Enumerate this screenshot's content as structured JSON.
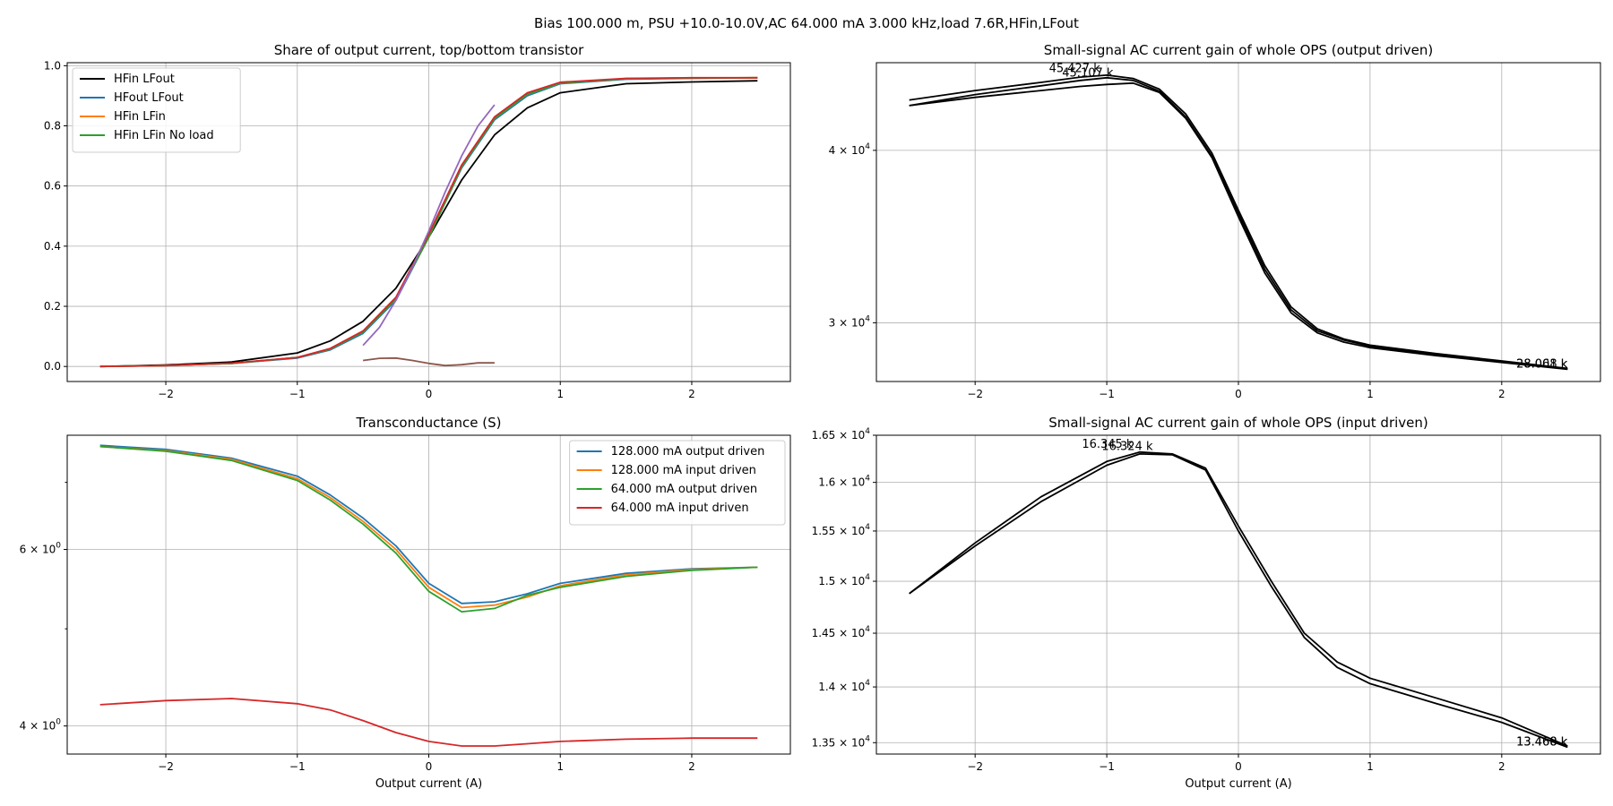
{
  "suptitle": "Bias 100.000 m, PSU +10.0-10.0V,AC 64.000 mA 3.000 kHz,load 7.6R,HFin,LFout",
  "colors": {
    "black": "#000000",
    "blue": "#1f77b4",
    "orange": "#ff7f0e",
    "green": "#2ca02c",
    "red": "#d62728",
    "purple": "#9467bd",
    "brown": "#8c564b"
  },
  "chart_data": [
    {
      "id": "share",
      "type": "line",
      "title": "Share of output current, top/bottom transistor",
      "xlabel": "",
      "ylabel": "",
      "xlim": [
        -2.75,
        2.75
      ],
      "ylim": [
        -0.05,
        1.01
      ],
      "xticks": [
        -2,
        -1,
        0,
        1,
        2
      ],
      "xtick_labels": [
        "−2",
        "−1",
        "0",
        "1",
        "2"
      ],
      "yticks": [
        0.0,
        0.2,
        0.4,
        0.6,
        0.8,
        1.0
      ],
      "ytick_labels": [
        "0.0",
        "0.2",
        "0.4",
        "0.6",
        "0.8",
        "1.0"
      ],
      "grid": true,
      "legend": "top-left",
      "legend_entries": [
        "HFin LFout",
        "HFout LFout",
        "HFin LFin",
        "HFin LFin No load"
      ],
      "series": [
        {
          "name": "HFin LFout",
          "color": "#000000",
          "x": [
            -2.5,
            -2.0,
            -1.5,
            -1.0,
            -0.75,
            -0.5,
            -0.25,
            0.0,
            0.25,
            0.5,
            0.75,
            1.0,
            1.5,
            2.0,
            2.5
          ],
          "y": [
            0.0,
            0.005,
            0.015,
            0.045,
            0.085,
            0.15,
            0.26,
            0.43,
            0.62,
            0.77,
            0.86,
            0.91,
            0.94,
            0.946,
            0.95
          ]
        },
        {
          "name": "HFout LFout",
          "color": "#1f77b4",
          "x": [
            -2.5,
            -2.0,
            -1.5,
            -1.0,
            -0.75,
            -0.5,
            -0.25,
            0.0,
            0.25,
            0.5,
            0.75,
            1.0,
            1.5,
            2.0,
            2.5
          ],
          "y": [
            0.0,
            0.003,
            0.01,
            0.028,
            0.055,
            0.11,
            0.22,
            0.43,
            0.66,
            0.82,
            0.9,
            0.94,
            0.955,
            0.958,
            0.96
          ]
        },
        {
          "name": "HFin LFin",
          "color": "#ff7f0e",
          "x": [
            -2.5,
            -2.0,
            -1.5,
            -1.0,
            -0.75,
            -0.5,
            -0.25,
            0.0,
            0.25,
            0.5,
            0.75,
            1.0,
            1.5,
            2.0,
            2.5
          ],
          "y": [
            0.0,
            0.003,
            0.01,
            0.03,
            0.058,
            0.115,
            0.225,
            0.43,
            0.665,
            0.825,
            0.905,
            0.942,
            0.957,
            0.959,
            0.96
          ]
        },
        {
          "name": "HFin LFin No load",
          "color": "#2ca02c",
          "x": [
            -2.5,
            -2.0,
            -1.5,
            -1.0,
            -0.75,
            -0.5,
            -0.25,
            0.0,
            0.25,
            0.5,
            0.75,
            1.0,
            1.5,
            2.0,
            2.5
          ],
          "y": [
            0.0,
            0.003,
            0.01,
            0.03,
            0.058,
            0.115,
            0.225,
            0.43,
            0.665,
            0.825,
            0.905,
            0.942,
            0.957,
            0.959,
            0.96
          ]
        },
        {
          "color": "#d62728",
          "x": [
            -2.5,
            -2.0,
            -1.5,
            -1.0,
            -0.75,
            -0.5,
            -0.25,
            0.0,
            0.25,
            0.5,
            0.75,
            1.0,
            1.5,
            2.0,
            2.5
          ],
          "y": [
            0.0,
            0.003,
            0.011,
            0.03,
            0.06,
            0.118,
            0.23,
            0.44,
            0.67,
            0.83,
            0.91,
            0.945,
            0.958,
            0.96,
            0.96
          ]
        },
        {
          "color": "#9467bd",
          "x": [
            -0.5,
            -0.375,
            -0.25,
            -0.125,
            0.0,
            0.125,
            0.25,
            0.375,
            0.5
          ],
          "y": [
            0.07,
            0.13,
            0.22,
            0.33,
            0.45,
            0.58,
            0.7,
            0.8,
            0.87
          ]
        },
        {
          "color": "#8c564b",
          "x": [
            -0.5,
            -0.375,
            -0.25,
            -0.125,
            0.0,
            0.125,
            0.25,
            0.375,
            0.5
          ],
          "y": [
            0.02,
            0.027,
            0.028,
            0.02,
            0.01,
            0.003,
            0.006,
            0.012,
            0.012
          ]
        }
      ]
    },
    {
      "id": "gain_out",
      "type": "line",
      "title": "Small-signal AC current gain of whole OPS (output driven)",
      "xlabel": "",
      "log_y": true,
      "xlim": [
        -2.75,
        2.75
      ],
      "ylim": [
        27200,
        46300
      ],
      "xticks": [
        -2,
        -1,
        0,
        1,
        2
      ],
      "xtick_labels": [
        "−2",
        "−1",
        "0",
        "1",
        "2"
      ],
      "yticks": [
        30000,
        40000
      ],
      "ytick_labels": [
        {
          "base": "3 × 10",
          "exp": "4"
        },
        {
          "base": "4 × 10",
          "exp": "4"
        }
      ],
      "grid": true,
      "annotations": [
        {
          "text": "45.427 k",
          "x": -1.05,
          "y": 45427,
          "anchor": "end"
        },
        {
          "text": "45.107 k",
          "x": -0.95,
          "y": 45107,
          "anchor": "end"
        },
        {
          "text": "28.061 k",
          "x": 2.5,
          "y": 27750,
          "anchor": "end"
        },
        {
          "text": "28.008 k",
          "x": 2.5,
          "y": 27750,
          "anchor": "end"
        }
      ],
      "series": [
        {
          "color": "#000000",
          "x": [
            -2.5,
            -2.0,
            -1.5,
            -1.2,
            -1.0,
            -0.8,
            -0.6,
            -0.4,
            -0.2,
            0.0,
            0.2,
            0.4,
            0.6,
            0.8,
            1.0,
            1.5,
            2.0,
            2.5
          ],
          "y": [
            43500,
            44200,
            44800,
            45200,
            45350,
            45100,
            44300,
            42500,
            39800,
            36200,
            33000,
            30800,
            29700,
            29200,
            28900,
            28500,
            28150,
            27800
          ]
        },
        {
          "color": "#000000",
          "x": [
            -2.5,
            -2.0,
            -1.5,
            -1.2,
            -1.0,
            -0.8,
            -0.6,
            -0.4,
            -0.2,
            0.0,
            0.2,
            0.4,
            0.6,
            0.8,
            1.0,
            1.5,
            2.0,
            2.5
          ],
          "y": [
            43100,
            43900,
            44550,
            44950,
            45150,
            44950,
            44150,
            42300,
            39600,
            36000,
            32800,
            30650,
            29600,
            29150,
            28850,
            28450,
            28100,
            27780
          ]
        },
        {
          "color": "#000000",
          "x": [
            -2.5,
            -2.0,
            -1.5,
            -1.2,
            -1.0,
            -0.8,
            -0.6,
            -0.4,
            -0.2,
            0.0,
            0.2,
            0.4,
            0.6,
            0.8,
            1.0,
            1.5,
            2.0,
            2.5
          ],
          "y": [
            43100,
            43700,
            44200,
            44500,
            44650,
            44750,
            44050,
            42200,
            39500,
            35800,
            32600,
            30500,
            29500,
            29050,
            28780,
            28400,
            28080,
            27760
          ]
        }
      ]
    },
    {
      "id": "transconductance",
      "type": "line",
      "title": "Transconductance (S)",
      "xlabel": "Output current (A)",
      "log_y": true,
      "xlim": [
        -2.75,
        2.75
      ],
      "ylim": [
        3.75,
        7.8
      ],
      "xticks": [
        -2,
        -1,
        0,
        1,
        2
      ],
      "xtick_labels": [
        "−2",
        "−1",
        "0",
        "1",
        "2"
      ],
      "yticks": [
        4,
        6
      ],
      "ytick_labels": [
        {
          "base": "4 × 10",
          "exp": "0"
        },
        {
          "base": "6 × 10",
          "exp": "0"
        }
      ],
      "minor_yticks": [
        5,
        7
      ],
      "grid": true,
      "legend": "top-right",
      "legend_entries": [
        "128.000 mA output driven",
        "128.000 mA input driven",
        "64.000 mA output driven",
        "64.000 mA input driven"
      ],
      "series": [
        {
          "name": "128.000 mA output driven",
          "color": "#1f77b4",
          "x": [
            -2.5,
            -2.0,
            -1.5,
            -1.0,
            -0.75,
            -0.5,
            -0.25,
            0.0,
            0.25,
            0.5,
            0.75,
            1.0,
            1.5,
            2.0,
            2.5
          ],
          "y": [
            7.62,
            7.55,
            7.4,
            7.1,
            6.8,
            6.45,
            6.05,
            5.55,
            5.3,
            5.32,
            5.42,
            5.55,
            5.68,
            5.74,
            5.76
          ]
        },
        {
          "name": "128.000 mA input driven",
          "color": "#ff7f0e",
          "x": [
            -2.5,
            -2.0,
            -1.5,
            -1.0,
            -0.75,
            -0.5,
            -0.25,
            0.0,
            0.25,
            0.5,
            0.75,
            1.0,
            1.5,
            2.0,
            2.5
          ],
          "y": [
            7.6,
            7.53,
            7.38,
            7.06,
            6.76,
            6.4,
            6.0,
            5.5,
            5.25,
            5.28,
            5.38,
            5.52,
            5.66,
            5.73,
            5.76
          ]
        },
        {
          "name": "64.000 mA output driven",
          "color": "#2ca02c",
          "x": [
            -2.5,
            -2.0,
            -1.5,
            -1.0,
            -0.75,
            -0.5,
            -0.25,
            0.0,
            0.25,
            0.5,
            0.75,
            1.0,
            1.5,
            2.0,
            2.5
          ],
          "y": [
            7.6,
            7.52,
            7.36,
            7.03,
            6.72,
            6.36,
            5.95,
            5.45,
            5.2,
            5.24,
            5.4,
            5.5,
            5.64,
            5.72,
            5.76
          ]
        },
        {
          "name": "64.000 mA input driven",
          "color": "#d62728",
          "x": [
            -2.5,
            -2.0,
            -1.5,
            -1.0,
            -0.75,
            -0.5,
            -0.25,
            0.0,
            0.25,
            0.5,
            0.75,
            1.0,
            1.5,
            2.0,
            2.5
          ],
          "y": [
            4.2,
            4.24,
            4.26,
            4.21,
            4.15,
            4.05,
            3.94,
            3.86,
            3.82,
            3.82,
            3.84,
            3.86,
            3.88,
            3.89,
            3.89
          ]
        }
      ]
    },
    {
      "id": "gain_in",
      "type": "line",
      "title": "Small-signal AC current gain of whole OPS (input driven)",
      "xlabel": "Output current (A)",
      "log_y": true,
      "xlim": [
        -2.75,
        2.75
      ],
      "ylim": [
        13400,
        16500
      ],
      "xticks": [
        -2,
        -1,
        0,
        1,
        2
      ],
      "xtick_labels": [
        "−2",
        "−1",
        "0",
        "1",
        "2"
      ],
      "yticks": [
        13500,
        14000,
        14500,
        15000,
        15500,
        16000,
        16500
      ],
      "ytick_labels": [
        {
          "base": "1.35 × 10",
          "exp": "4"
        },
        {
          "base": "1.4 × 10",
          "exp": "4"
        },
        {
          "base": "1.45 × 10",
          "exp": "4"
        },
        {
          "base": "1.5 × 10",
          "exp": "4"
        },
        {
          "base": "1.55 × 10",
          "exp": "4"
        },
        {
          "base": "1.6 × 10",
          "exp": "4"
        },
        {
          "base": "1.65 × 10",
          "exp": "4"
        }
      ],
      "grid": true,
      "annotations": [
        {
          "text": "16.345 k",
          "x": -0.8,
          "y": 16345,
          "anchor": "end"
        },
        {
          "text": "16.324 k",
          "x": -0.65,
          "y": 16324,
          "anchor": "end"
        },
        {
          "text": "13.460 k",
          "x": 2.5,
          "y": 13460,
          "anchor": "end"
        },
        {
          "text": "13.468 k",
          "x": 2.5,
          "y": 13460,
          "anchor": "end"
        }
      ],
      "series": [
        {
          "color": "#000000",
          "x": [
            -2.5,
            -2.0,
            -1.5,
            -1.0,
            -0.75,
            -0.5,
            -0.25,
            0.0,
            0.25,
            0.5,
            0.75,
            1.0,
            1.5,
            2.0,
            2.5
          ],
          "y": [
            14880,
            15380,
            15850,
            16220,
            16320,
            16300,
            16150,
            15550,
            15000,
            14500,
            14230,
            14080,
            13900,
            13720,
            13470
          ]
        },
        {
          "color": "#000000",
          "x": [
            -2.5,
            -2.0,
            -1.5,
            -1.0,
            -0.75,
            -0.5,
            -0.25,
            0.0,
            0.25,
            0.5,
            0.75,
            1.0,
            1.5,
            2.0,
            2.5
          ],
          "y": [
            14880,
            15350,
            15800,
            16180,
            16300,
            16290,
            16130,
            15500,
            14950,
            14460,
            14180,
            14030,
            13850,
            13680,
            13460
          ]
        }
      ]
    }
  ]
}
